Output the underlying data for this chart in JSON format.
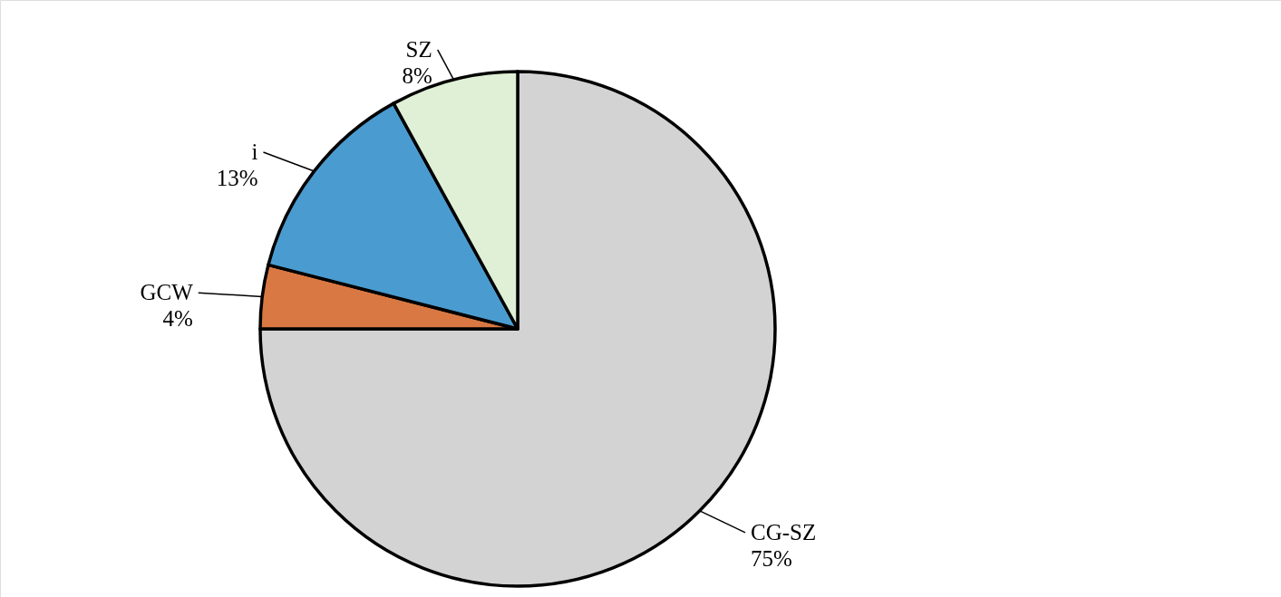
{
  "chart_data": {
    "type": "pie",
    "categories": [
      "CG-SZ",
      "GCW",
      "i",
      "SZ"
    ],
    "values": [
      75,
      4,
      13,
      8
    ],
    "value_labels": [
      "75%",
      "4%",
      "13%",
      "8%"
    ],
    "colors": [
      "#d3d3d3",
      "#d97843",
      "#4a9cd0",
      "#dff0d6"
    ]
  }
}
